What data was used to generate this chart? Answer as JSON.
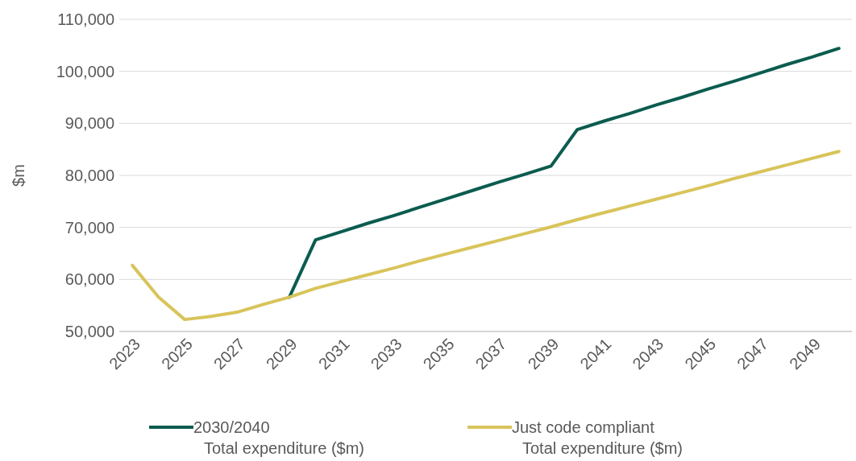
{
  "chart_data": {
    "type": "line",
    "ylabel": "$m",
    "categories": [
      "2023",
      null,
      "2025",
      null,
      "2027",
      null,
      "2029",
      null,
      "2031",
      null,
      "2033",
      null,
      "2035",
      null,
      "2037",
      null,
      "2039",
      null,
      "2041",
      null,
      "2043",
      null,
      "2045",
      null,
      "2047",
      null,
      "2049",
      null
    ],
    "series": [
      {
        "name": "2030/2040\nTotal expenditure ($m)",
        "color": "#0b5c4f",
        "values": [
          null,
          null,
          null,
          null,
          null,
          null,
          56600,
          67600,
          69200,
          70800,
          72300,
          73900,
          75500,
          77100,
          78700,
          80200,
          81800,
          88800,
          90400,
          91900,
          93500,
          95000,
          96600,
          98100,
          99700,
          101300,
          102800,
          104400
        ]
      },
      {
        "name": "Just code compliant\nTotal expenditure ($m)",
        "color": "#d8c45a",
        "values": [
          62700,
          56600,
          52300,
          52900,
          53700,
          55200,
          56600,
          58300,
          59600,
          60900,
          62200,
          63600,
          64900,
          66200,
          67500,
          68800,
          70100,
          71500,
          72800,
          74100,
          75400,
          76700,
          78000,
          79400,
          80700,
          82000,
          83300,
          84600
        ]
      }
    ],
    "ylim": [
      50000,
      110000
    ],
    "yticks": [
      {
        "value": 50000,
        "label": "50,000"
      },
      {
        "value": 60000,
        "label": "60,000"
      },
      {
        "value": 70000,
        "label": "70,000"
      },
      {
        "value": 80000,
        "label": "80,000"
      },
      {
        "value": 90000,
        "label": "90,000"
      },
      {
        "value": 100000,
        "label": "100,000"
      },
      {
        "value": 110000,
        "label": "110,000"
      }
    ],
    "grid": "y",
    "legend": "bottom",
    "marker": "none",
    "line_style": "solid"
  }
}
